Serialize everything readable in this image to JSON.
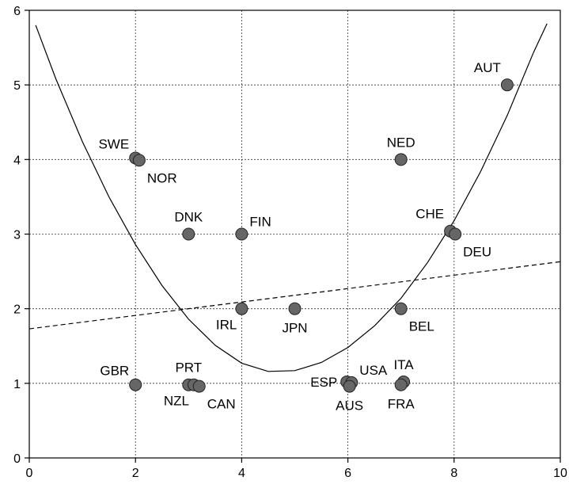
{
  "chart_data": {
    "type": "scatter",
    "xlim": [
      0,
      10
    ],
    "ylim": [
      0,
      6
    ],
    "x_ticks": [
      0,
      2,
      4,
      6,
      8,
      10
    ],
    "y_ticks": [
      0,
      1,
      2,
      3,
      4,
      5,
      6
    ],
    "grid": true,
    "points": [
      {
        "label": "AUT",
        "x": 9.0,
        "y": 5.0,
        "label_pos": "above-left"
      },
      {
        "label": "SWE",
        "x": 2.0,
        "y": 4.02,
        "label_pos": "left-above"
      },
      {
        "label": "NOR",
        "x": 2.07,
        "y": 3.99,
        "label_pos": "below-right"
      },
      {
        "label": "NED",
        "x": 7.0,
        "y": 4.0,
        "label_pos": "above"
      },
      {
        "label": "DNK",
        "x": 3.0,
        "y": 3.0,
        "label_pos": "above"
      },
      {
        "label": "FIN",
        "x": 4.0,
        "y": 3.0,
        "label_pos": "above-right"
      },
      {
        "label": "CHE",
        "x": 7.93,
        "y": 3.04,
        "label_pos": "above-left"
      },
      {
        "label": "DEU",
        "x": 8.02,
        "y": 3.0,
        "label_pos": "below-right"
      },
      {
        "label": "IRL",
        "x": 4.0,
        "y": 2.0,
        "label_pos": "below-left"
      },
      {
        "label": "JPN",
        "x": 5.0,
        "y": 2.0,
        "label_pos": "below"
      },
      {
        "label": "BEL",
        "x": 7.0,
        "y": 2.0,
        "label_pos": "below-right"
      },
      {
        "label": "GBR",
        "x": 2.0,
        "y": 0.98,
        "label_pos": "left-above"
      },
      {
        "label": "PRT",
        "x": 3.0,
        "y": 0.98,
        "label_pos": "above"
      },
      {
        "label": "NZL",
        "x": 3.1,
        "y": 0.98,
        "label_pos": "below-left"
      },
      {
        "label": "CAN",
        "x": 3.2,
        "y": 0.96,
        "label_pos": "below-right"
      },
      {
        "label": "ESP",
        "x": 5.98,
        "y": 1.02,
        "label_pos": "left"
      },
      {
        "label": "USA",
        "x": 6.07,
        "y": 1.01,
        "label_pos": "above-right"
      },
      {
        "label": "AUS",
        "x": 6.03,
        "y": 0.96,
        "label_pos": "below"
      },
      {
        "label": "ITA",
        "x": 7.05,
        "y": 1.02,
        "label_pos": "above"
      },
      {
        "label": "FRA",
        "x": 7.0,
        "y": 0.98,
        "label_pos": "below"
      }
    ],
    "curve": [
      [
        0.12,
        5.8
      ],
      [
        0.5,
        5.08
      ],
      [
        1.0,
        4.24
      ],
      [
        1.5,
        3.5
      ],
      [
        2.0,
        2.86
      ],
      [
        2.5,
        2.31
      ],
      [
        3.0,
        1.86
      ],
      [
        3.5,
        1.51
      ],
      [
        4.0,
        1.27
      ],
      [
        4.5,
        1.16
      ],
      [
        5.0,
        1.17
      ],
      [
        5.5,
        1.28
      ],
      [
        6.0,
        1.48
      ],
      [
        6.5,
        1.77
      ],
      [
        7.0,
        2.14
      ],
      [
        7.5,
        2.62
      ],
      [
        8.0,
        3.18
      ],
      [
        8.5,
        3.84
      ],
      [
        9.0,
        4.59
      ],
      [
        9.5,
        5.44
      ],
      [
        9.75,
        5.82
      ]
    ],
    "trend_line": [
      [
        0.0,
        1.73
      ],
      [
        10.0,
        2.63
      ]
    ]
  }
}
